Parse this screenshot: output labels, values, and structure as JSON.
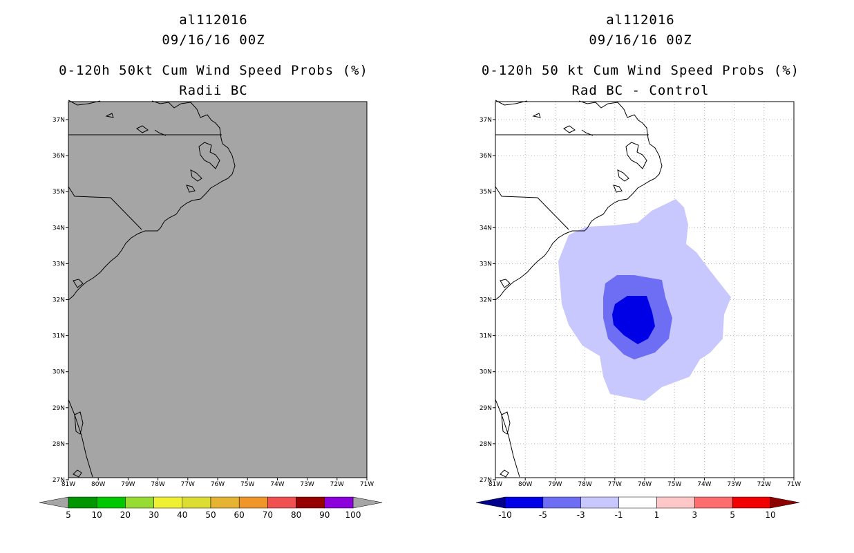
{
  "left": {
    "storm_id": "al112016",
    "datetime": "09/16/16 00Z",
    "title": "0-120h 50kt Cum Wind Speed Probs (%)",
    "subtitle": "Radii BC",
    "colorbar": {
      "labels": [
        "5",
        "10",
        "20",
        "30",
        "40",
        "50",
        "60",
        "70",
        "80",
        "90",
        "100"
      ],
      "colors": [
        "#009600",
        "#00c800",
        "#96dc32",
        "#f0f032",
        "#dcdc32",
        "#e6b432",
        "#f09628",
        "#f05050",
        "#960000",
        "#8c00dc"
      ],
      "under_color": "#a5a5a5",
      "over_color": "#a5a5a5"
    },
    "field_color": "#a5a5a5"
  },
  "right": {
    "storm_id": "al112016",
    "datetime": "09/16/16 00Z",
    "title": "0-120h 50 kt Cum Wind Speed Probs (%)",
    "subtitle": "Rad BC - Control",
    "colorbar": {
      "labels": [
        "-10",
        "-5",
        "-3",
        "-1",
        "1",
        "3",
        "5",
        "10"
      ],
      "colors": [
        "#0000e6",
        "#6e6ef5",
        "#c8c8ff",
        "#ffffff",
        "#ffc8c8",
        "#ff6e6e",
        "#f00000"
      ],
      "under_color": "#00008c",
      "over_color": "#8c0000"
    },
    "contour_colors": [
      "#c8c8ff",
      "#6e6ef5",
      "#0000e6"
    ]
  },
  "map": {
    "lat_labels": [
      "37N",
      "36N",
      "35N",
      "34N",
      "33N",
      "32N",
      "31N",
      "30N",
      "29N",
      "28N",
      "27N"
    ],
    "lon_labels": [
      "81W",
      "80W",
      "79W",
      "78W",
      "77W",
      "76W",
      "75W",
      "74W",
      "73W",
      "72W",
      "71W"
    ]
  }
}
